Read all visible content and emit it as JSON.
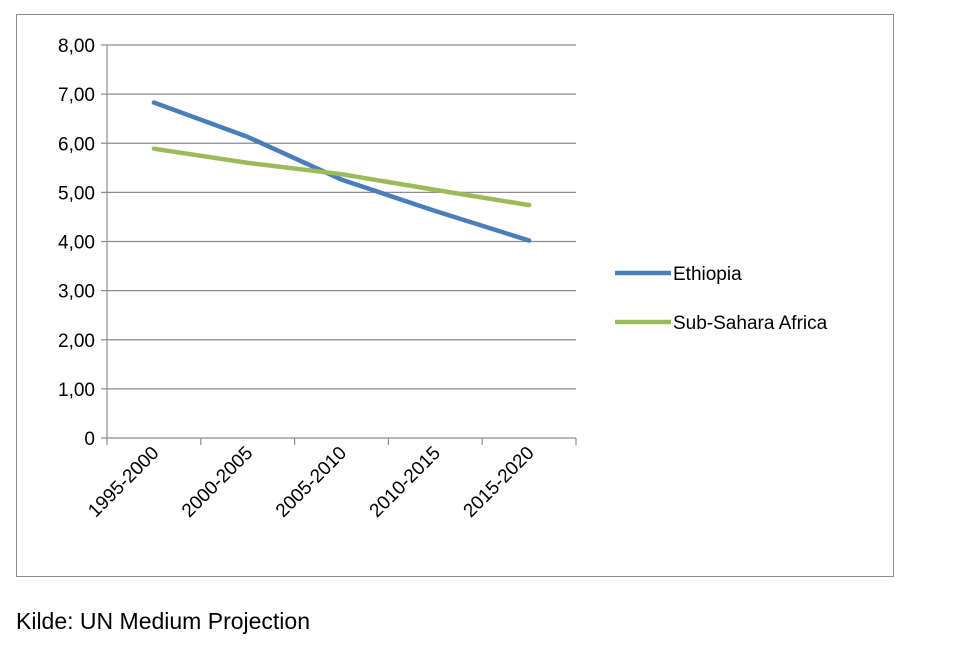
{
  "chart_data": {
    "type": "line",
    "title": "",
    "xlabel": "",
    "ylabel": "",
    "categories": [
      "1995-2000",
      "2000-2005",
      "2005-2010",
      "2010-2015",
      "2015-2020"
    ],
    "series": [
      {
        "name": "Ethiopia",
        "values": [
          6.83,
          6.13,
          5.26,
          4.62,
          4.02
        ],
        "color": "#4a7ebb"
      },
      {
        "name": "Sub-Sahara Africa",
        "values": [
          5.89,
          5.6,
          5.37,
          5.05,
          4.74
        ],
        "color": "#9bbb59"
      }
    ],
    "ylim": [
      0,
      8
    ],
    "yticks": [
      0,
      1,
      2,
      3,
      4,
      5,
      6,
      7,
      8
    ],
    "ytick_labels": [
      "0",
      "1,00",
      "2,00",
      "3,00",
      "4,00",
      "5,00",
      "6,00",
      "7,00",
      "8,00"
    ],
    "grid": "horizontal",
    "legend_position": "right"
  },
  "source_note": "Kilde: UN Medium Projection"
}
